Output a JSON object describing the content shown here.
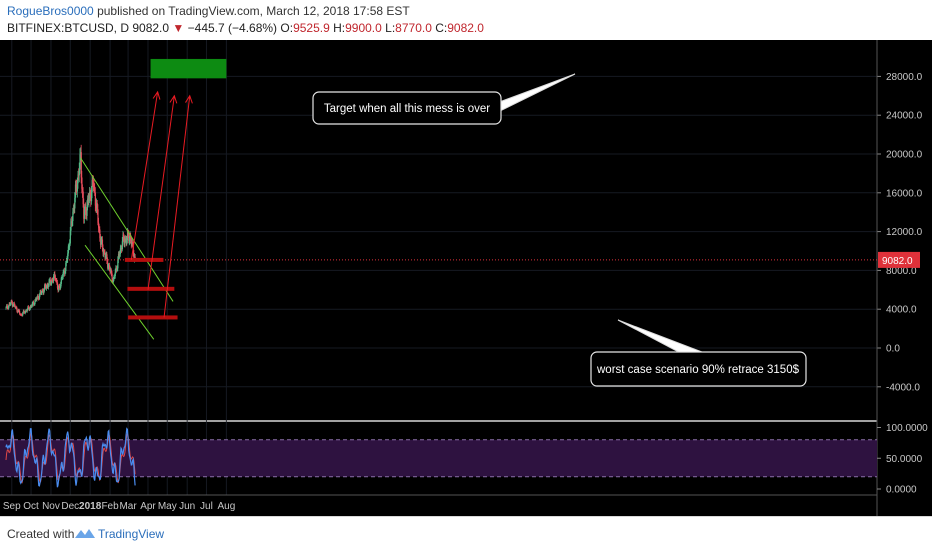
{
  "header": {
    "author": "RogueBros0000",
    "published_text": " published on TradingView.com, March 12, 2018 17:58 EST",
    "symbol": "BITFINEX:BTCUSD, D",
    "last": "9082.0",
    "change": "−445.7 (−4.68%)",
    "o_label": "O:",
    "o_val": "9525.9",
    "h_label": "H:",
    "h_val": "9900.0",
    "l_label": "L:",
    "l_val": "8770.0",
    "c_label": "C:",
    "c_val": "9082.0"
  },
  "footer": {
    "created": "Created with",
    "brand": "TradingView"
  },
  "colors": {
    "bg": "#000000",
    "up": "#53b987",
    "down": "#eb4d5c",
    "channel": "#6ecf2d",
    "arrow": "#e81b23",
    "target": "#0d8b12",
    "support": "#b40e0e",
    "rsi_bg": "#2e1240",
    "rsi_line": "#4a8df0",
    "rsi_signal": "#e04848",
    "price_label": "#e0313a"
  },
  "chart_data": [
    {
      "type": "candlestick",
      "title": "BITFINEX:BTCUSD, D",
      "x_tick_labels": [
        "Sep",
        "Oct",
        "Nov",
        "Dec",
        "2018",
        "Feb",
        "Mar",
        "Apr",
        "May",
        "Jun",
        "Jul",
        "Aug"
      ],
      "y_tick_labels": [
        "28000.0",
        "24000.0",
        "20000.0",
        "16000.0",
        "12000.0",
        "8000.0",
        "4000.0",
        "0.0",
        "-4000.0"
      ],
      "ylim": [
        -5000,
        31000
      ],
      "grid": true,
      "last_price_label": "9082.0",
      "approx_close_path": [
        {
          "date": "2017-08-23",
          "price": 4100
        },
        {
          "date": "2017-09-01",
          "price": 4700
        },
        {
          "date": "2017-09-15",
          "price": 3400
        },
        {
          "date": "2017-10-01",
          "price": 4300
        },
        {
          "date": "2017-10-20",
          "price": 6000
        },
        {
          "date": "2017-11-08",
          "price": 7400
        },
        {
          "date": "2017-11-12",
          "price": 5900
        },
        {
          "date": "2017-11-25",
          "price": 8700
        },
        {
          "date": "2017-12-07",
          "price": 15000
        },
        {
          "date": "2017-12-17",
          "price": 19500
        },
        {
          "date": "2017-12-22",
          "price": 13500
        },
        {
          "date": "2018-01-06",
          "price": 17000
        },
        {
          "date": "2018-01-17",
          "price": 11000
        },
        {
          "date": "2018-02-06",
          "price": 6900
        },
        {
          "date": "2018-02-20",
          "price": 11000
        },
        {
          "date": "2018-03-04",
          "price": 11500
        },
        {
          "date": "2018-03-12",
          "price": 9082
        }
      ],
      "annotations": [
        {
          "type": "text",
          "text": "Target when all this mess is over"
        },
        {
          "type": "text",
          "text": "worst case scenario 90% retrace 3150$"
        },
        {
          "type": "zone",
          "label": "target",
          "from_date": "2018-04-05",
          "to_date": "2018-08-01",
          "price_low": 27800,
          "price_high": 29800
        },
        {
          "type": "support",
          "price": 9082,
          "from_date": "2018-02-24",
          "to_date": "2018-04-25"
        },
        {
          "type": "support",
          "price": 6100,
          "from_date": "2018-02-28",
          "to_date": "2018-05-12"
        },
        {
          "type": "support",
          "price": 3150,
          "from_date": "2018-03-01",
          "to_date": "2018-05-17"
        },
        {
          "type": "channel",
          "upper": [
            {
              "date": "2017-12-17",
              "price": 19600
            },
            {
              "date": "2018-05-10",
              "price": 4800
            }
          ],
          "lower": [
            {
              "date": "2017-12-24",
              "price": 10600
            },
            {
              "date": "2018-04-10",
              "price": 900
            }
          ]
        }
      ]
    },
    {
      "type": "line",
      "title": "RSI",
      "y_tick_labels": [
        "100.0000",
        "50.0000",
        "0.0000"
      ],
      "ylim": [
        0,
        100
      ],
      "bands": [
        80,
        20
      ],
      "grid": true
    }
  ]
}
